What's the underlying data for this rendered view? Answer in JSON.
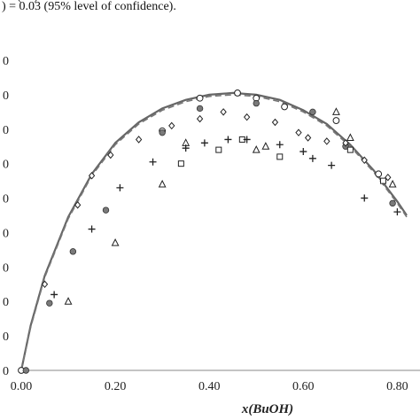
{
  "caption": {
    "line1_fragment": "… (…) …",
    "line2": ") = 0.03 (95% level of confidence)."
  },
  "chart_data": {
    "type": "scatter",
    "title": "",
    "xlabel": "x(BuOH)",
    "ylabel": "",
    "xlim": [
      0,
      0.82
    ],
    "ylim": [
      0,
      1.8
    ],
    "x_ticks": [
      "0.00",
      "0.20",
      "0.40",
      "0.60",
      "0.80"
    ],
    "y_ticks_partial": [
      "0",
      "0",
      "0",
      "0",
      "0",
      "0",
      "0",
      "0",
      "0",
      "0"
    ],
    "grid": false,
    "colors": {
      "solid_curve": "#666666",
      "dashed_curve": "#777777",
      "markers": "#222222",
      "filled_circle": "#7a7a7a"
    },
    "series": [
      {
        "marker": "circle",
        "points": [
          [
            0.0,
            0.0
          ],
          [
            0.3,
            1.39
          ],
          [
            0.38,
            1.58
          ],
          [
            0.46,
            1.61
          ],
          [
            0.5,
            1.58
          ],
          [
            0.56,
            1.53
          ],
          [
            0.67,
            1.45
          ],
          [
            0.76,
            1.14
          ]
        ]
      },
      {
        "marker": "filled-circle",
        "points": [
          [
            0.01,
            0.0
          ],
          [
            0.06,
            0.39
          ],
          [
            0.11,
            0.69
          ],
          [
            0.18,
            0.93
          ],
          [
            0.3,
            1.38
          ],
          [
            0.38,
            1.52
          ],
          [
            0.5,
            1.55
          ],
          [
            0.62,
            1.5
          ],
          [
            0.69,
            1.3
          ],
          [
            0.79,
            0.97
          ]
        ]
      },
      {
        "marker": "triangle",
        "points": [
          [
            0.1,
            0.4
          ],
          [
            0.2,
            0.74
          ],
          [
            0.3,
            1.08
          ],
          [
            0.35,
            1.32
          ],
          [
            0.5,
            1.28
          ],
          [
            0.52,
            1.3
          ],
          [
            0.67,
            1.5
          ],
          [
            0.7,
            1.35
          ],
          [
            0.79,
            1.08
          ]
        ]
      },
      {
        "marker": "diamond",
        "points": [
          [
            0.05,
            0.5
          ],
          [
            0.12,
            0.96
          ],
          [
            0.15,
            1.13
          ],
          [
            0.19,
            1.25
          ],
          [
            0.25,
            1.34
          ],
          [
            0.32,
            1.42
          ],
          [
            0.38,
            1.46
          ],
          [
            0.43,
            1.5
          ],
          [
            0.48,
            1.47
          ],
          [
            0.54,
            1.44
          ],
          [
            0.59,
            1.38
          ],
          [
            0.61,
            1.35
          ],
          [
            0.65,
            1.33
          ],
          [
            0.69,
            1.32
          ],
          [
            0.73,
            1.22
          ],
          [
            0.78,
            1.12
          ]
        ]
      },
      {
        "marker": "square",
        "points": [
          [
            0.34,
            1.2
          ],
          [
            0.42,
            1.28
          ],
          [
            0.47,
            1.34
          ],
          [
            0.55,
            1.24
          ],
          [
            0.7,
            1.28
          ],
          [
            0.77,
            1.1
          ]
        ]
      },
      {
        "marker": "plus",
        "points": [
          [
            0.07,
            0.44
          ],
          [
            0.15,
            0.82
          ],
          [
            0.21,
            1.06
          ],
          [
            0.28,
            1.21
          ],
          [
            0.35,
            1.29
          ],
          [
            0.39,
            1.32
          ],
          [
            0.44,
            1.34
          ],
          [
            0.48,
            1.34
          ],
          [
            0.55,
            1.31
          ],
          [
            0.6,
            1.27
          ],
          [
            0.62,
            1.23
          ],
          [
            0.66,
            1.19
          ],
          [
            0.73,
            1.0
          ],
          [
            0.8,
            0.92
          ]
        ]
      }
    ],
    "fit_curves": [
      {
        "style": "solid",
        "x": [
          0.0,
          0.02,
          0.05,
          0.1,
          0.15,
          0.2,
          0.25,
          0.3,
          0.35,
          0.4,
          0.45,
          0.5,
          0.55,
          0.6,
          0.65,
          0.7,
          0.75,
          0.8,
          0.82
        ],
        "y": [
          0.0,
          0.26,
          0.55,
          0.89,
          1.14,
          1.32,
          1.44,
          1.52,
          1.57,
          1.6,
          1.61,
          1.6,
          1.57,
          1.51,
          1.43,
          1.31,
          1.16,
          0.98,
          0.9
        ]
      },
      {
        "style": "dashed",
        "x": [
          0.0,
          0.02,
          0.05,
          0.1,
          0.15,
          0.2,
          0.25,
          0.3,
          0.35,
          0.4,
          0.45,
          0.5,
          0.55,
          0.6,
          0.65,
          0.7,
          0.75,
          0.8,
          0.82
        ],
        "y": [
          0.0,
          0.25,
          0.54,
          0.88,
          1.13,
          1.31,
          1.43,
          1.51,
          1.56,
          1.59,
          1.6,
          1.59,
          1.56,
          1.5,
          1.42,
          1.3,
          1.15,
          0.97,
          0.89
        ]
      }
    ]
  }
}
